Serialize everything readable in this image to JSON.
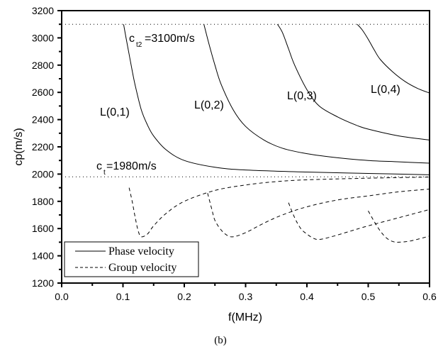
{
  "chart_data": {
    "type": "line",
    "title": "",
    "xlabel": "f(MHz)",
    "ylabel": "cp(m/s)",
    "xlim": [
      0.0,
      0.6
    ],
    "ylim": [
      1200,
      3200
    ],
    "xticks": [
      "0.0",
      "0.1",
      "0.2",
      "0.3",
      "0.4",
      "0.5",
      "0.6"
    ],
    "yticks": [
      "1200",
      "1400",
      "1600",
      "1800",
      "2000",
      "2200",
      "2400",
      "2600",
      "2800",
      "3000",
      "3200"
    ],
    "grid": false,
    "caption": "(b)",
    "legend": {
      "position": "bottom-left",
      "entries": [
        {
          "label": "Phase velocity",
          "style": "solid"
        },
        {
          "label": "Group velocity",
          "style": "dashed"
        }
      ]
    },
    "reference_lines": [
      {
        "y": 3100,
        "label_main": "c",
        "label_sub": "t2",
        "label_rest": "=3100m/s",
        "style": "dotted"
      },
      {
        "y": 1980,
        "label_main": "c",
        "label_sub": "t",
        "label_rest": "=1980m/s",
        "style": "dotted"
      }
    ],
    "series": [
      {
        "name": "L(0,1) phase",
        "label": "L(0,1)",
        "kind": "phase",
        "x": [
          0.101,
          0.105,
          0.11,
          0.115,
          0.12,
          0.13,
          0.14,
          0.15,
          0.17,
          0.2,
          0.25,
          0.3,
          0.4,
          0.5,
          0.6
        ],
        "y": [
          3100,
          3000,
          2880,
          2760,
          2650,
          2470,
          2360,
          2280,
          2180,
          2100,
          2050,
          2030,
          2015,
          2005,
          1995
        ]
      },
      {
        "name": "L(0,2) phase",
        "label": "L(0,2)",
        "kind": "phase",
        "x": [
          0.232,
          0.24,
          0.25,
          0.26,
          0.28,
          0.3,
          0.33,
          0.36,
          0.4,
          0.45,
          0.5,
          0.55,
          0.6
        ],
        "y": [
          3100,
          2960,
          2800,
          2660,
          2470,
          2350,
          2250,
          2190,
          2150,
          2120,
          2100,
          2090,
          2080
        ]
      },
      {
        "name": "L(0,3) phase",
        "label": "L(0,3)",
        "kind": "phase",
        "x": [
          0.352,
          0.36,
          0.37,
          0.38,
          0.4,
          0.42,
          0.45,
          0.48,
          0.5,
          0.55,
          0.6
        ],
        "y": [
          3100,
          3040,
          2920,
          2800,
          2620,
          2500,
          2420,
          2360,
          2330,
          2280,
          2250
        ]
      },
      {
        "name": "L(0,4) phase",
        "label": "L(0,4)",
        "kind": "phase",
        "x": [
          0.482,
          0.49,
          0.5,
          0.51,
          0.52,
          0.54,
          0.56,
          0.58,
          0.6
        ],
        "y": [
          3100,
          3060,
          2990,
          2910,
          2840,
          2750,
          2680,
          2630,
          2595
        ]
      },
      {
        "name": "L(0,1) group",
        "kind": "group",
        "x": [
          0.11,
          0.115,
          0.12,
          0.125,
          0.13,
          0.14,
          0.15,
          0.17,
          0.2,
          0.25,
          0.3,
          0.35,
          0.4,
          0.5,
          0.6
        ],
        "y": [
          1900,
          1800,
          1680,
          1580,
          1540,
          1560,
          1620,
          1710,
          1800,
          1880,
          1920,
          1945,
          1958,
          1970,
          1978
        ]
      },
      {
        "name": "L(0,2) group",
        "kind": "group",
        "x": [
          0.238,
          0.245,
          0.25,
          0.26,
          0.27,
          0.28,
          0.3,
          0.33,
          0.36,
          0.4,
          0.45,
          0.5,
          0.55,
          0.6
        ],
        "y": [
          1860,
          1740,
          1660,
          1590,
          1550,
          1540,
          1570,
          1640,
          1700,
          1760,
          1810,
          1840,
          1870,
          1890
        ]
      },
      {
        "name": "L(0,3) group",
        "kind": "group",
        "x": [
          0.37,
          0.38,
          0.39,
          0.4,
          0.41,
          0.42,
          0.44,
          0.47,
          0.5,
          0.55,
          0.6
        ],
        "y": [
          1790,
          1680,
          1600,
          1560,
          1530,
          1520,
          1540,
          1580,
          1620,
          1680,
          1740
        ]
      },
      {
        "name": "L(0,4) group",
        "kind": "group",
        "x": [
          0.5,
          0.51,
          0.52,
          0.53,
          0.54,
          0.55,
          0.57,
          0.6
        ],
        "y": [
          1730,
          1650,
          1580,
          1530,
          1505,
          1500,
          1510,
          1545
        ]
      }
    ]
  }
}
